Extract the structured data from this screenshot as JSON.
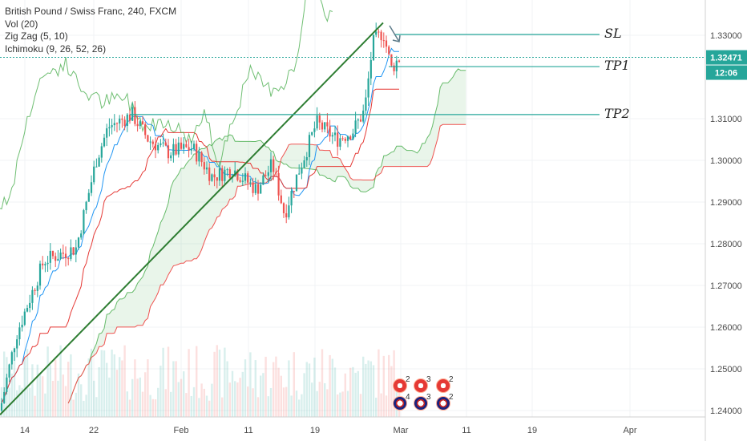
{
  "legend": {
    "symbol": "British Pound / Swiss Franc, 240, FXCM",
    "vol": "Vol (20)",
    "zigzag": "Zig Zag (5, 10)",
    "ichimoku": "Ichimoku (9, 26, 52, 26)"
  },
  "price_badge": {
    "value": "1.32471",
    "countdown": "12:06",
    "color": "#26a69a"
  },
  "annotations": {
    "sl": "SL",
    "tp1": "TP1",
    "tp2": "TP2"
  },
  "events": [
    {
      "flag": "swiss",
      "count": "2"
    },
    {
      "flag": "swiss",
      "count": "3"
    },
    {
      "flag": "swiss",
      "count": "2"
    },
    {
      "flag": "uk",
      "count": "4"
    },
    {
      "flag": "uk",
      "count": "3"
    },
    {
      "flag": "uk",
      "count": "2"
    }
  ],
  "chart_data": {
    "type": "candlestick",
    "title": "British Pound / Swiss Franc, 240, FXCM",
    "ylim": [
      1.235,
      1.338
    ],
    "y_ticks": [
      "1.33000",
      "1.31000",
      "1.30000",
      "1.29000",
      "1.28000",
      "1.27000",
      "1.26000",
      "1.25000",
      "1.24000"
    ],
    "x_ticks": [
      "14",
      "22",
      "Feb",
      "11",
      "19",
      "Mar",
      "11",
      "19",
      "Apr"
    ],
    "last_price": 1.32471,
    "levels": {
      "sl": 1.3302,
      "tp1": 1.3225,
      "tp2": 1.311
    },
    "trendline": {
      "from": [
        "14",
        1.239
      ],
      "to": [
        "Mar",
        1.333
      ]
    },
    "colors": {
      "up": "#26a69a",
      "down": "#ef5350",
      "tenkan": "#2196f3",
      "kijun": "#e53935",
      "chikou": "#4caf50",
      "zigzag": "#2e7d32",
      "level": "#26a69a"
    }
  }
}
